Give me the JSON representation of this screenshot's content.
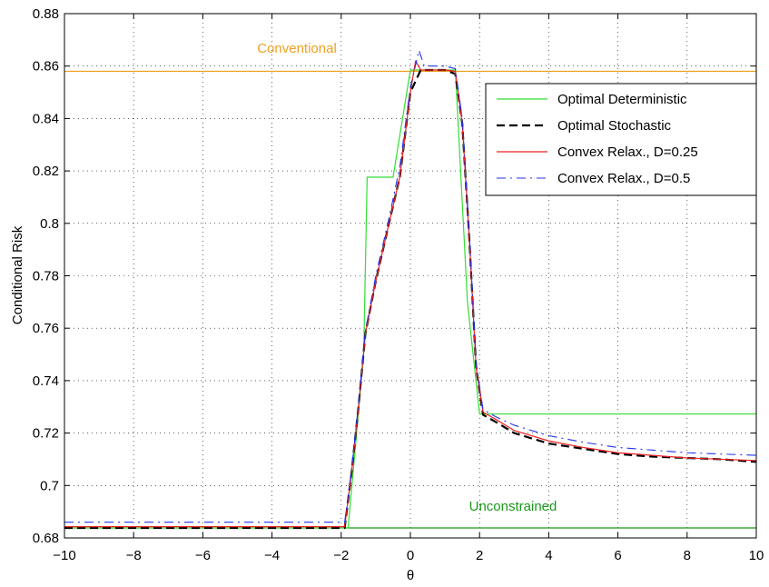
{
  "chart_data": {
    "type": "line",
    "title": "",
    "xlabel": "θ",
    "ylabel": "Conditional Risk",
    "xlim": [
      -10,
      10
    ],
    "ylim": [
      0.68,
      0.88
    ],
    "xticks": [
      -10,
      -8,
      -6,
      -4,
      -2,
      0,
      2,
      4,
      6,
      8,
      10
    ],
    "xtick_labels": [
      "−10",
      "−8",
      "−6",
      "−4",
      "−2",
      "0",
      "2",
      "4",
      "6",
      "8",
      "10"
    ],
    "yticks": [
      0.68,
      0.7,
      0.72,
      0.74,
      0.76,
      0.78,
      0.8,
      0.82,
      0.84,
      0.86,
      0.88
    ],
    "ytick_labels": [
      "0.68",
      "0.7",
      "0.72",
      "0.74",
      "0.76",
      "0.78",
      "0.8",
      "0.82",
      "0.84",
      "0.86",
      "0.88"
    ],
    "grid": true,
    "legend_position": "top-right",
    "reference_lines": [
      {
        "label": "Conventional",
        "y": 0.858,
        "color": "#f0a020"
      },
      {
        "label": "Unconstrained",
        "y": 0.6838,
        "color": "#1a9a1a"
      }
    ],
    "series": [
      {
        "name": "Optimal Deterministic",
        "color": "#33dd33",
        "dash": "solid",
        "x": [
          -10,
          -1.8,
          -1.35,
          -1.25,
          -0.5,
          0,
          1.3,
          1.65,
          2.0,
          10
        ],
        "y": [
          0.6838,
          0.6838,
          0.75,
          0.8176,
          0.8176,
          0.8585,
          0.8585,
          0.77,
          0.7273,
          0.7273
        ]
      },
      {
        "name": "Optimal Stochastic",
        "color": "#000000",
        "dash": "dashed",
        "x": [
          -10,
          -1.9,
          -1.7,
          -1.5,
          -1.3,
          -1.0,
          -0.6,
          -0.3,
          0,
          0.3,
          1.0,
          1.3,
          1.5,
          1.7,
          1.9,
          2.1,
          2.5,
          3,
          4,
          5,
          6,
          7,
          8,
          9,
          10
        ],
        "y": [
          0.6838,
          0.6838,
          0.705,
          0.73,
          0.758,
          0.778,
          0.801,
          0.818,
          0.85,
          0.8585,
          0.8585,
          0.857,
          0.838,
          0.795,
          0.745,
          0.727,
          0.724,
          0.72,
          0.716,
          0.714,
          0.712,
          0.711,
          0.7105,
          0.71,
          0.709
        ]
      },
      {
        "name": "Convex Relax., D=0.25",
        "color": "#ee2222",
        "dash": "solid",
        "x": [
          -10,
          -1.9,
          -1.7,
          -1.5,
          -1.3,
          -1.0,
          -0.6,
          -0.3,
          0,
          0.15,
          0.3,
          1.0,
          1.3,
          1.5,
          1.7,
          1.9,
          2.1,
          2.5,
          3,
          4,
          5,
          6,
          7,
          8,
          9,
          10
        ],
        "y": [
          0.6843,
          0.6843,
          0.705,
          0.73,
          0.758,
          0.778,
          0.801,
          0.818,
          0.85,
          0.862,
          0.8585,
          0.8585,
          0.858,
          0.838,
          0.795,
          0.745,
          0.728,
          0.725,
          0.721,
          0.717,
          0.7145,
          0.7125,
          0.7115,
          0.7105,
          0.71,
          0.7095
        ]
      },
      {
        "name": "Convex Relax., D=0.5",
        "color": "#2233ee",
        "dash": "dashdot",
        "x": [
          -10,
          -1.9,
          -1.7,
          -1.5,
          -1.3,
          -1.0,
          -0.6,
          -0.3,
          0,
          0.25,
          0.4,
          1.0,
          1.3,
          1.5,
          1.7,
          1.9,
          2.1,
          2.5,
          3,
          4,
          5,
          6,
          7,
          8,
          9,
          10
        ],
        "y": [
          0.686,
          0.686,
          0.706,
          0.731,
          0.759,
          0.78,
          0.803,
          0.822,
          0.852,
          0.866,
          0.86,
          0.86,
          0.859,
          0.84,
          0.797,
          0.747,
          0.729,
          0.726,
          0.723,
          0.719,
          0.7165,
          0.7145,
          0.7135,
          0.7125,
          0.712,
          0.7115
        ]
      }
    ]
  }
}
